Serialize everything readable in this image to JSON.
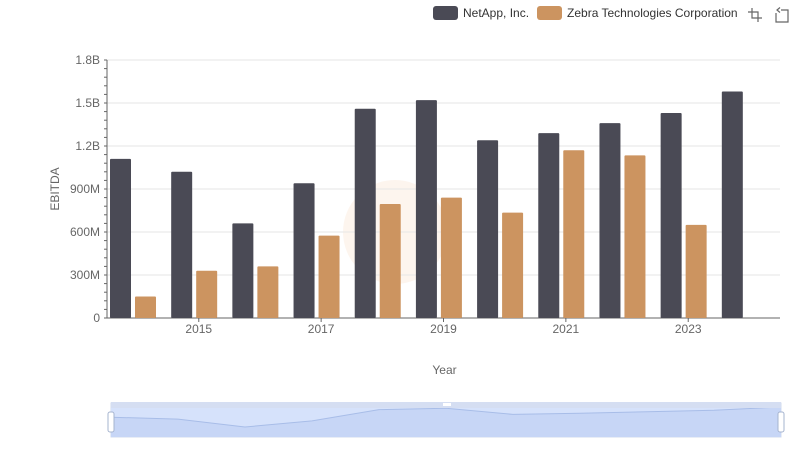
{
  "legend": [
    {
      "label": "NetApp, Inc.",
      "color": "#4a4a55"
    },
    {
      "label": "Zebra Technologies Corporation",
      "color": "#cc9460"
    }
  ],
  "toolbar": {
    "icons": [
      "zoom-icon",
      "zoom-reset-icon"
    ]
  },
  "chart_data": {
    "type": "bar",
    "xlabel": "Year",
    "ylabel": "EBITDA",
    "ylim": [
      0,
      1800000000
    ],
    "yticks": [
      "0",
      "300M",
      "600M",
      "900M",
      "1.2B",
      "1.5B",
      "1.8B"
    ],
    "xticks": [
      "2015",
      "2017",
      "2019",
      "2021",
      "2023"
    ],
    "categories": [
      "2014",
      "2015",
      "2016",
      "2017",
      "2018",
      "2019",
      "2020",
      "2021",
      "2022",
      "2023",
      "2024"
    ],
    "series": [
      {
        "name": "NetApp, Inc.",
        "color": "#4a4a55",
        "values": [
          1110000000,
          1020000000,
          660000000,
          940000000,
          1460000000,
          1520000000,
          1240000000,
          1290000000,
          1360000000,
          1430000000,
          1580000000
        ]
      },
      {
        "name": "Zebra Technologies Corporation",
        "color": "#cc9460",
        "values": [
          150000000,
          330000000,
          360000000,
          575000000,
          795000000,
          840000000,
          735000000,
          1170000000,
          1135000000,
          650000000,
          null
        ]
      }
    ],
    "grid": true,
    "legend_position": "top-right",
    "data_zoom": {
      "start": 0,
      "end": 100
    }
  }
}
